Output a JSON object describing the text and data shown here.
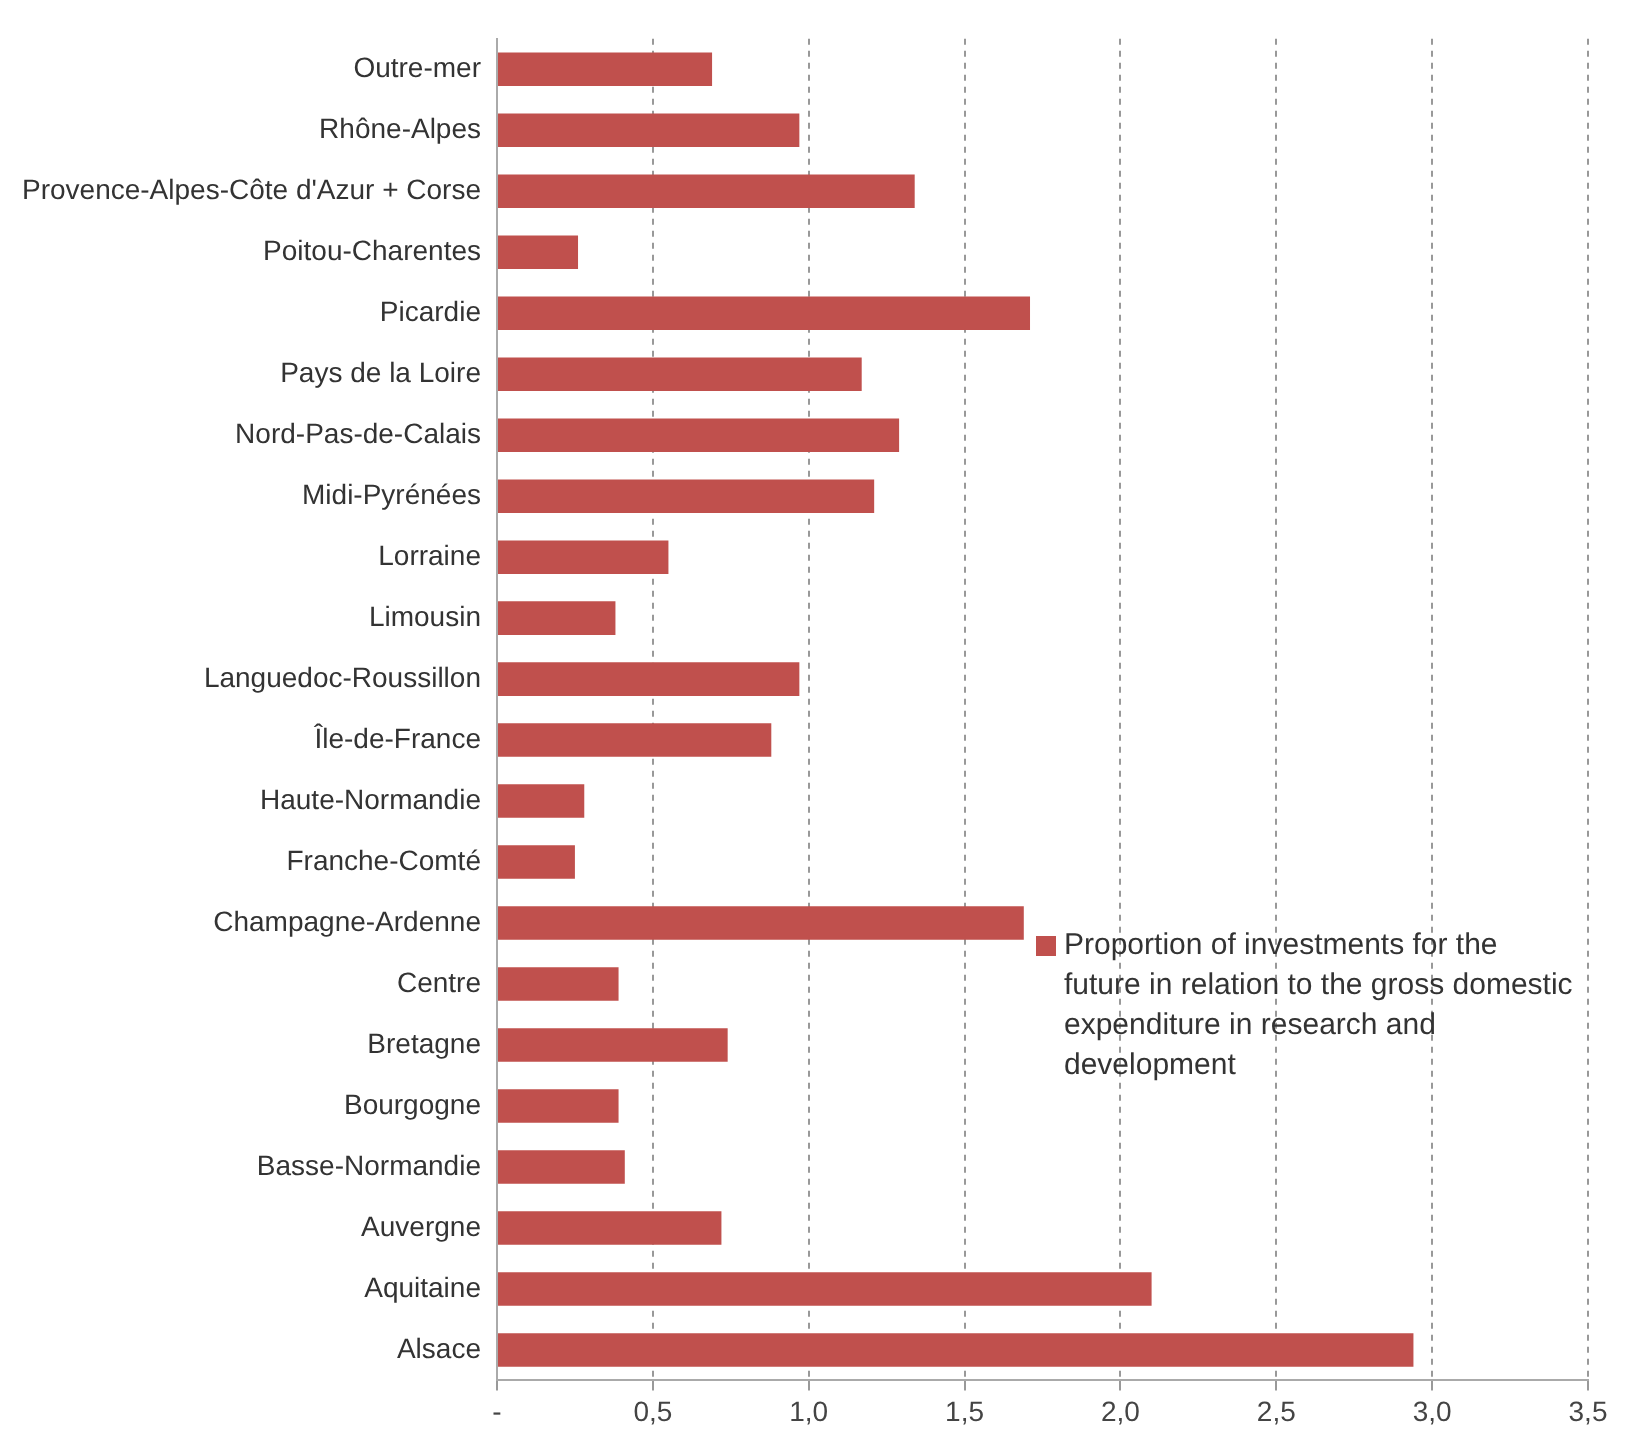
{
  "chart_data": {
    "type": "bar",
    "orientation": "horizontal",
    "categories": [
      "Outre-mer",
      "Rhône-Alpes",
      "Provence-Alpes-Côte d'Azur + Corse",
      "Poitou-Charentes",
      "Picardie",
      "Pays de la Loire",
      "Nord-Pas-de-Calais",
      "Midi-Pyrénées",
      "Lorraine",
      "Limousin",
      "Languedoc-Roussillon",
      "Île-de-France",
      "Haute-Normandie",
      "Franche-Comté",
      "Champagne-Ardenne",
      "Centre",
      "Bretagne",
      "Bourgogne",
      "Basse-Normandie",
      "Auvergne",
      "Aquitaine",
      "Alsace"
    ],
    "series": [
      {
        "name": "Proportion of investments for the future in relation to the gross domestic expenditure in research and development",
        "color": "#c0504d",
        "values": [
          0.69,
          0.97,
          1.34,
          0.26,
          1.71,
          1.17,
          1.29,
          1.21,
          0.55,
          0.38,
          0.97,
          0.88,
          0.28,
          0.25,
          1.69,
          0.39,
          0.74,
          0.39,
          0.41,
          0.72,
          2.1,
          2.94
        ]
      }
    ],
    "xlim": [
      0,
      3.5
    ],
    "xticks": [
      {
        "value": 0,
        "label": "-"
      },
      {
        "value": 0.5,
        "label": "0,5"
      },
      {
        "value": 1,
        "label": "1,0"
      },
      {
        "value": 1.5,
        "label": "1,5"
      },
      {
        "value": 2,
        "label": "2,0"
      },
      {
        "value": 2.5,
        "label": "2,5"
      },
      {
        "value": 3,
        "label": "3,0"
      },
      {
        "value": 3.5,
        "label": "3,5"
      }
    ],
    "grid": "x",
    "legend": "right"
  }
}
